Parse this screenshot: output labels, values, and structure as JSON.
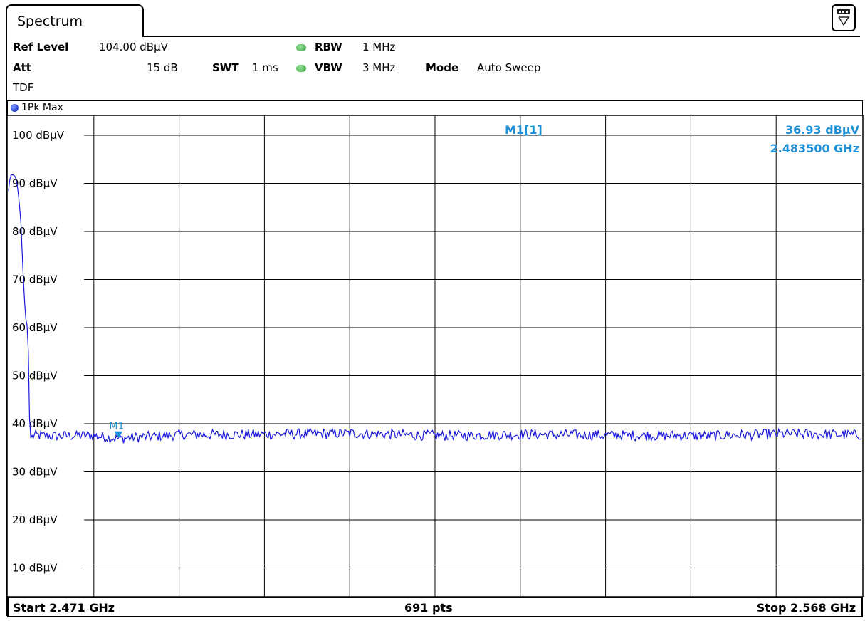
{
  "window": {
    "tab_title": "Spectrum"
  },
  "settings": {
    "ref_level_label": "Ref Level",
    "ref_level_value": "104.00 dBµV",
    "att_label": "Att",
    "att_value": "15 dB",
    "swt_label": "SWT",
    "swt_value": "1 ms",
    "rbw_label": "RBW",
    "rbw_value": "1 MHz",
    "vbw_label": "VBW",
    "vbw_value": "3 MHz",
    "mode_label": "Mode",
    "mode_value": "Auto Sweep",
    "tdf_label": "TDF"
  },
  "trace": {
    "label": "1Pk Max",
    "color": "#1a1adb"
  },
  "marker": {
    "name": "M1",
    "readout_label": "M1[1]",
    "level": "36.93 dBµV",
    "frequency": "2.483500 GHz",
    "color": "#1e90d6"
  },
  "footer": {
    "start": "Start 2.471 GHz",
    "points": "691 pts",
    "stop": "Stop 2.568 GHz"
  },
  "chart_data": {
    "type": "line",
    "x_unit": "GHz",
    "y_unit": "dBµV",
    "xlim": [
      2.471,
      2.568
    ],
    "ylim": [
      4,
      104
    ],
    "y_ticks": [
      100,
      90,
      80,
      70,
      60,
      50,
      40,
      30,
      20,
      10
    ],
    "y_tick_labels": [
      "100 dBµV",
      "90 dBµV",
      "80 dBµV",
      "70 dBµV",
      "60 dBµV",
      "50 dBµV",
      "40 dBµV",
      "30 dBµV",
      "20 dBµV",
      "10 dBµV"
    ],
    "grid": true,
    "points": 691,
    "series": [
      {
        "x": [
          2.471,
          2.4712,
          2.4714,
          2.4716,
          2.4718,
          2.472,
          2.4722,
          2.4724,
          2.4726,
          2.4728,
          2.473,
          2.4732,
          2.4734,
          2.4735,
          2.4737,
          2.474,
          2.476,
          2.48,
          2.4835,
          2.49,
          2.5,
          2.51,
          2.52,
          2.53,
          2.54,
          2.55,
          2.56,
          2.568
        ],
        "y": [
          88.5,
          91.6,
          91.8,
          91.7,
          91.3,
          89.5,
          86.5,
          82.0,
          73.5,
          66.0,
          61.0,
          60.0,
          40.0,
          36.9,
          37.3,
          37.6,
          37.4,
          37.6,
          36.93,
          37.7,
          37.8,
          38.0,
          37.5,
          37.8,
          37.6,
          37.5,
          37.9,
          37.7
        ]
      }
    ],
    "marker": {
      "x": 2.4835,
      "y": 36.93
    }
  }
}
